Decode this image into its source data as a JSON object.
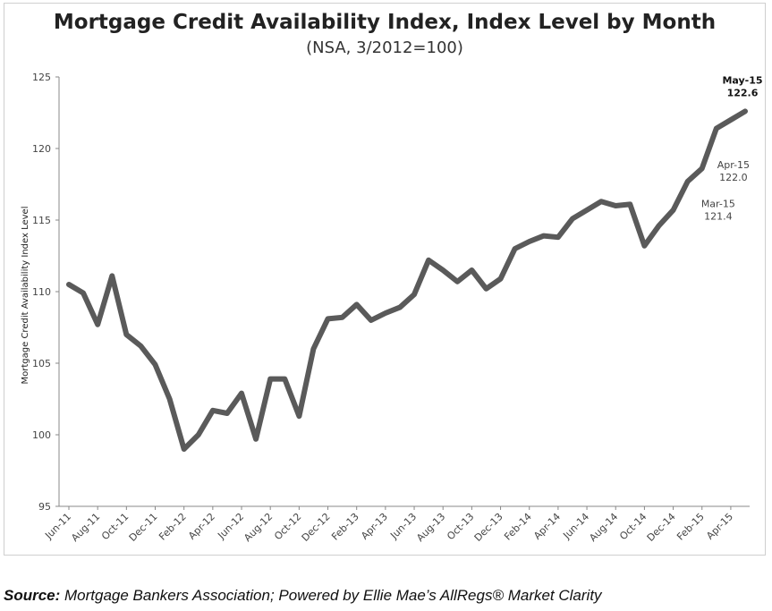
{
  "chart_data": {
    "type": "line",
    "title": "Mortgage Credit Availability Index, Index Level by Month",
    "subtitle": "(NSA, 3/2012=100)",
    "xlabel": "",
    "ylabel": "Mortgage Credit Availability Index Level",
    "ylim": [
      95,
      125
    ],
    "yticks": [
      "95",
      "100",
      "105",
      "110",
      "115",
      "120",
      "125"
    ],
    "grid": false,
    "x": [
      "Jun-11",
      "Jul-11",
      "Aug-11",
      "Sep-11",
      "Oct-11",
      "Nov-11",
      "Dec-11",
      "Jan-12",
      "Feb-12",
      "Mar-12",
      "Apr-12",
      "May-12",
      "Jun-12",
      "Jul-12",
      "Aug-12",
      "Sep-12",
      "Oct-12",
      "Nov-12",
      "Dec-12",
      "Jan-13",
      "Feb-13",
      "Mar-13",
      "Apr-13",
      "May-13",
      "Jun-13",
      "Jul-13",
      "Aug-13",
      "Sep-13",
      "Oct-13",
      "Nov-13",
      "Dec-13",
      "Jan-14",
      "Feb-14",
      "Mar-14",
      "Apr-14",
      "May-14",
      "Jun-14",
      "Jul-14",
      "Aug-14",
      "Sep-14",
      "Oct-14",
      "Nov-14",
      "Dec-14",
      "Jan-15",
      "Feb-15",
      "Mar-15",
      "Apr-15",
      "May-15"
    ],
    "xtick_labels": [
      "Jun-11",
      "Aug-11",
      "Oct-11",
      "Dec-11",
      "Feb-12",
      "Apr-12",
      "Jun-12",
      "Aug-12",
      "Oct-12",
      "Dec-12",
      "Feb-13",
      "Apr-13",
      "Jun-13",
      "Aug-13",
      "Oct-13",
      "Dec-13",
      "Feb-14",
      "Apr-14",
      "Jun-14",
      "Aug-14",
      "Oct-14",
      "Dec-14",
      "Feb-15",
      "Apr-15"
    ],
    "series": [
      {
        "color": "#5a5a5a",
        "values": [
          110.5,
          109.9,
          107.7,
          111.1,
          107.0,
          106.2,
          104.9,
          102.5,
          99.0,
          100.0,
          101.7,
          101.5,
          102.9,
          99.7,
          103.9,
          103.9,
          101.3,
          106.0,
          108.1,
          108.2,
          109.1,
          108.0,
          108.5,
          108.9,
          109.8,
          112.2,
          111.5,
          110.7,
          111.5,
          110.2,
          110.9,
          113.0,
          113.5,
          113.9,
          113.8,
          115.1,
          115.7,
          116.3,
          116.0,
          116.1,
          113.2,
          114.6,
          115.7,
          117.7,
          118.6,
          121.4,
          122.0,
          122.6
        ]
      }
    ],
    "annotations": [
      {
        "month": "May-15",
        "label": "May-15",
        "value": "122.6",
        "bold": true
      },
      {
        "month": "Apr-15",
        "label": "Apr-15",
        "value": "122.0",
        "bold": false
      },
      {
        "month": "Mar-15",
        "label": "Mar-15",
        "value": "121.4",
        "bold": false
      }
    ]
  },
  "source": {
    "label": "Source:",
    "text": " Mortgage Bankers Association; Powered by Ellie Mae’s AllRegs® Market Clarity"
  }
}
